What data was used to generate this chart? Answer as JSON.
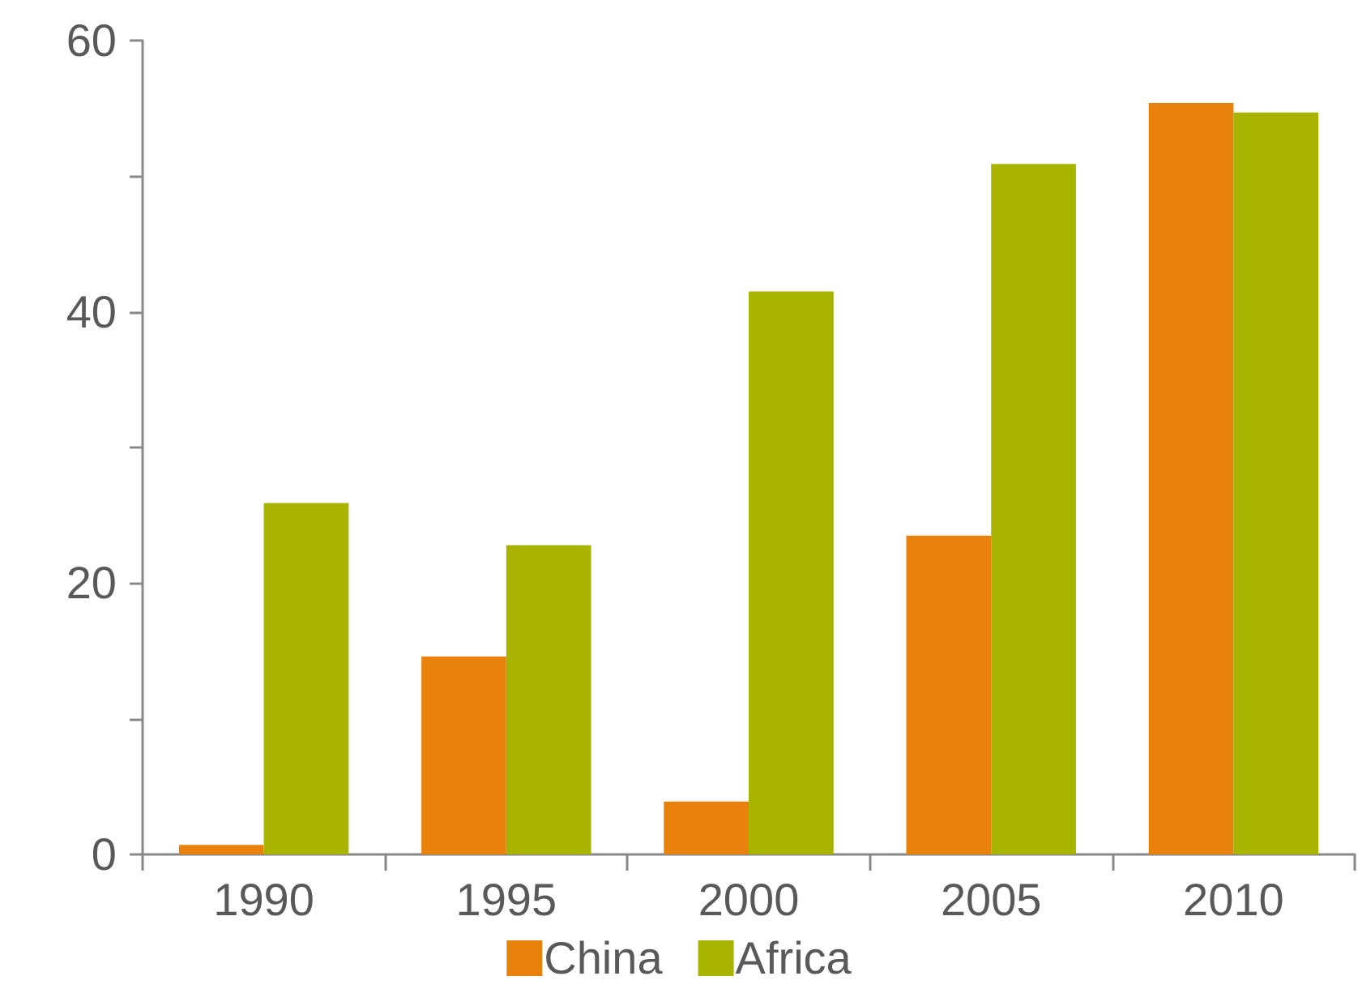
{
  "chart_data": {
    "type": "bar",
    "categories": [
      "1990",
      "1995",
      "2000",
      "2005",
      "2010"
    ],
    "series": [
      {
        "name": "China",
        "color": "#e8820c",
        "values": [
          0.7,
          14.6,
          3.9,
          23.5,
          55.4
        ]
      },
      {
        "name": "Africa",
        "color": "#a8b400",
        "values": [
          25.9,
          22.8,
          41.5,
          50.9,
          54.7
        ]
      }
    ],
    "ylim": [
      0,
      60
    ],
    "yticks": [
      0,
      {
        "value": 10,
        "label": null
      },
      20,
      {
        "value": 30,
        "label": null
      },
      40,
      {
        "value": 50,
        "label": null
      },
      60
    ],
    "grid": false,
    "legend": "bottom"
  }
}
